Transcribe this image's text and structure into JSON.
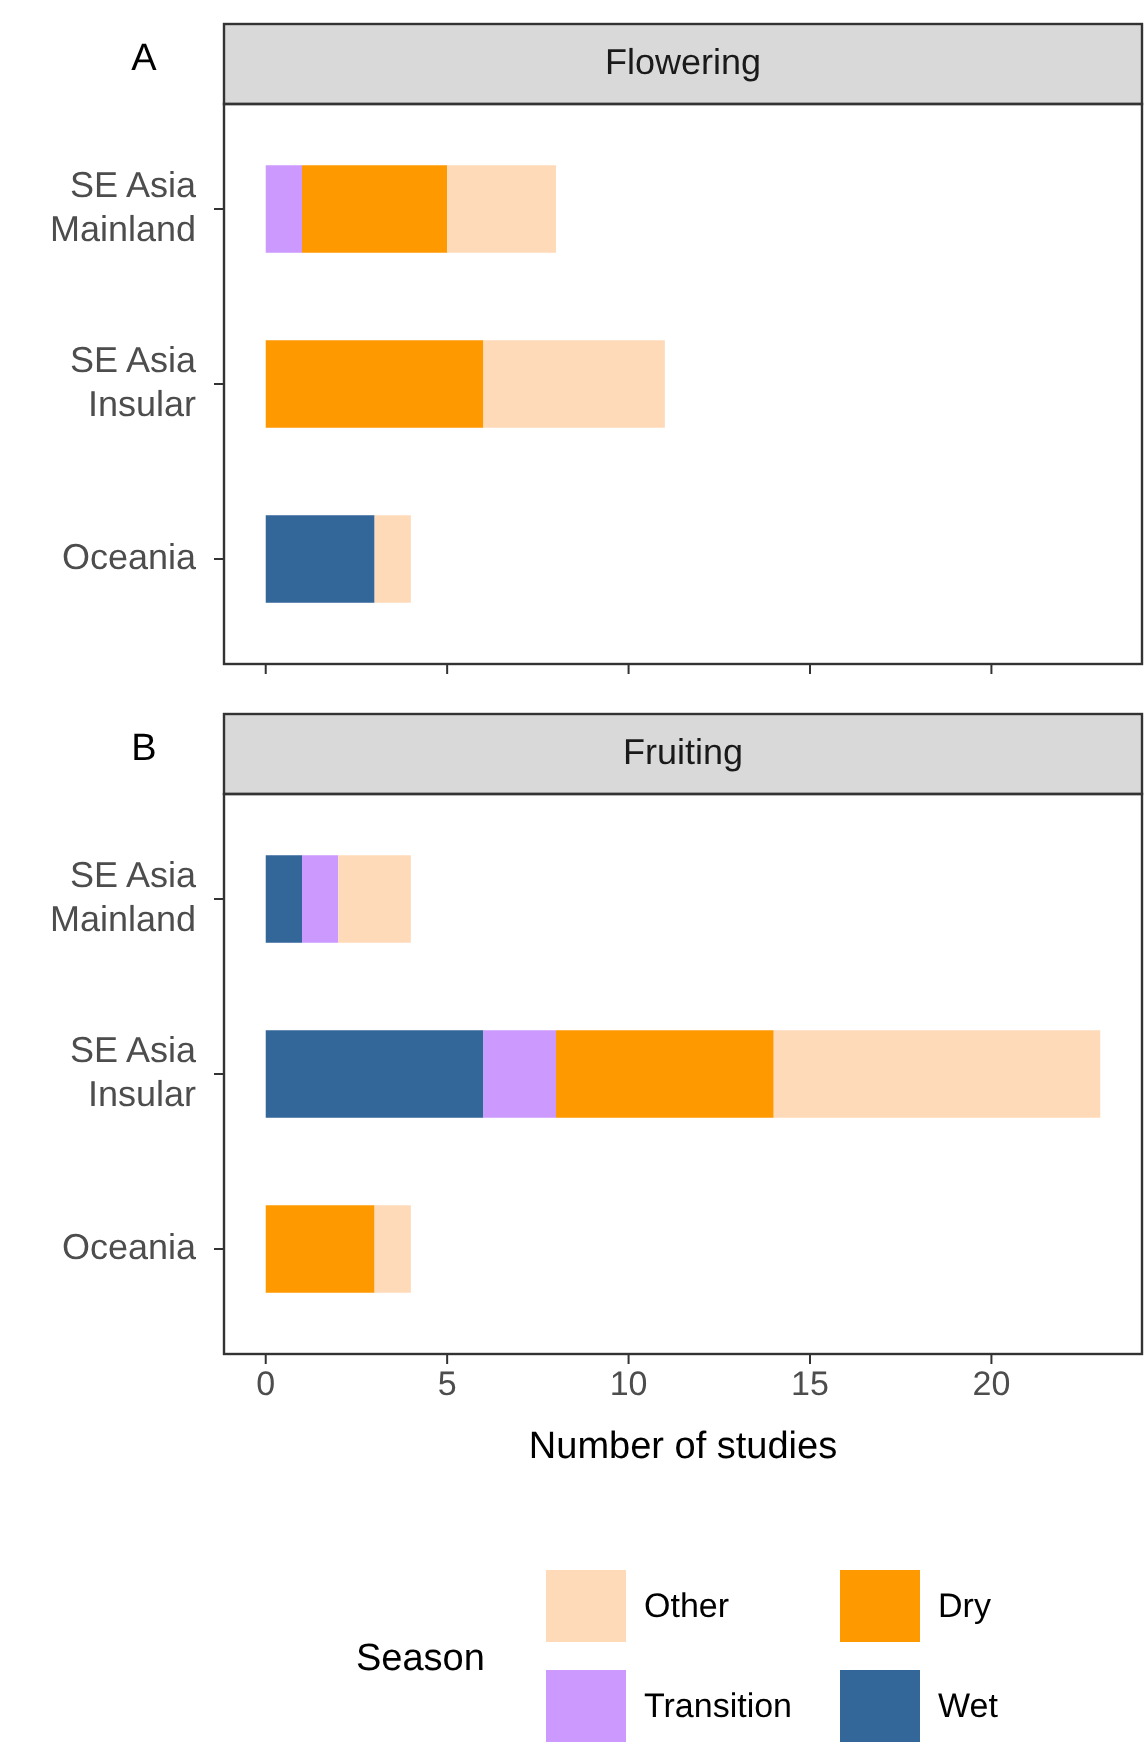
{
  "chart_data": [
    {
      "type": "bar",
      "orientation": "horizontal",
      "stacked": true,
      "title": "Flowering",
      "annotations": [
        "A"
      ],
      "categories": [
        "SE Asia Mainland",
        "SE Asia Insular",
        "Oceania"
      ],
      "xlim": [
        -1.15,
        24.15
      ],
      "xticks": [
        0,
        5,
        10,
        15,
        20
      ],
      "tick_labels": "y",
      "legend": false,
      "series": [
        {
          "color": "#336699",
          "values": [
            0,
            0,
            3
          ]
        },
        {
          "color": "#cc99ff",
          "values": [
            1,
            0,
            0
          ]
        },
        {
          "color": "#ff9900",
          "values": [
            4,
            6,
            0
          ]
        },
        {
          "color": "#ffdab9",
          "values": [
            3,
            5,
            1
          ]
        }
      ]
    },
    {
      "type": "bar",
      "orientation": "horizontal",
      "stacked": true,
      "title": "Fruiting",
      "annotations": [
        "B"
      ],
      "xlabel": "Number of studies",
      "legend_title": "Season",
      "legend": "bottom",
      "categories": [
        "SE Asia Mainland",
        "SE Asia Insular",
        "Oceania"
      ],
      "xlim": [
        -1.15,
        24.15
      ],
      "xticks": [
        0,
        5,
        10,
        15,
        20
      ],
      "series": [
        {
          "name": "Wet",
          "color": "#336699",
          "values": [
            1,
            6,
            0
          ]
        },
        {
          "name": "Transition",
          "color": "#cc99ff",
          "values": [
            1,
            2,
            0
          ]
        },
        {
          "name": "Dry",
          "color": "#ff9900",
          "values": [
            0,
            6,
            3
          ]
        },
        {
          "name": "Other",
          "color": "#ffdab9",
          "values": [
            2,
            9,
            1
          ]
        }
      ]
    }
  ]
}
